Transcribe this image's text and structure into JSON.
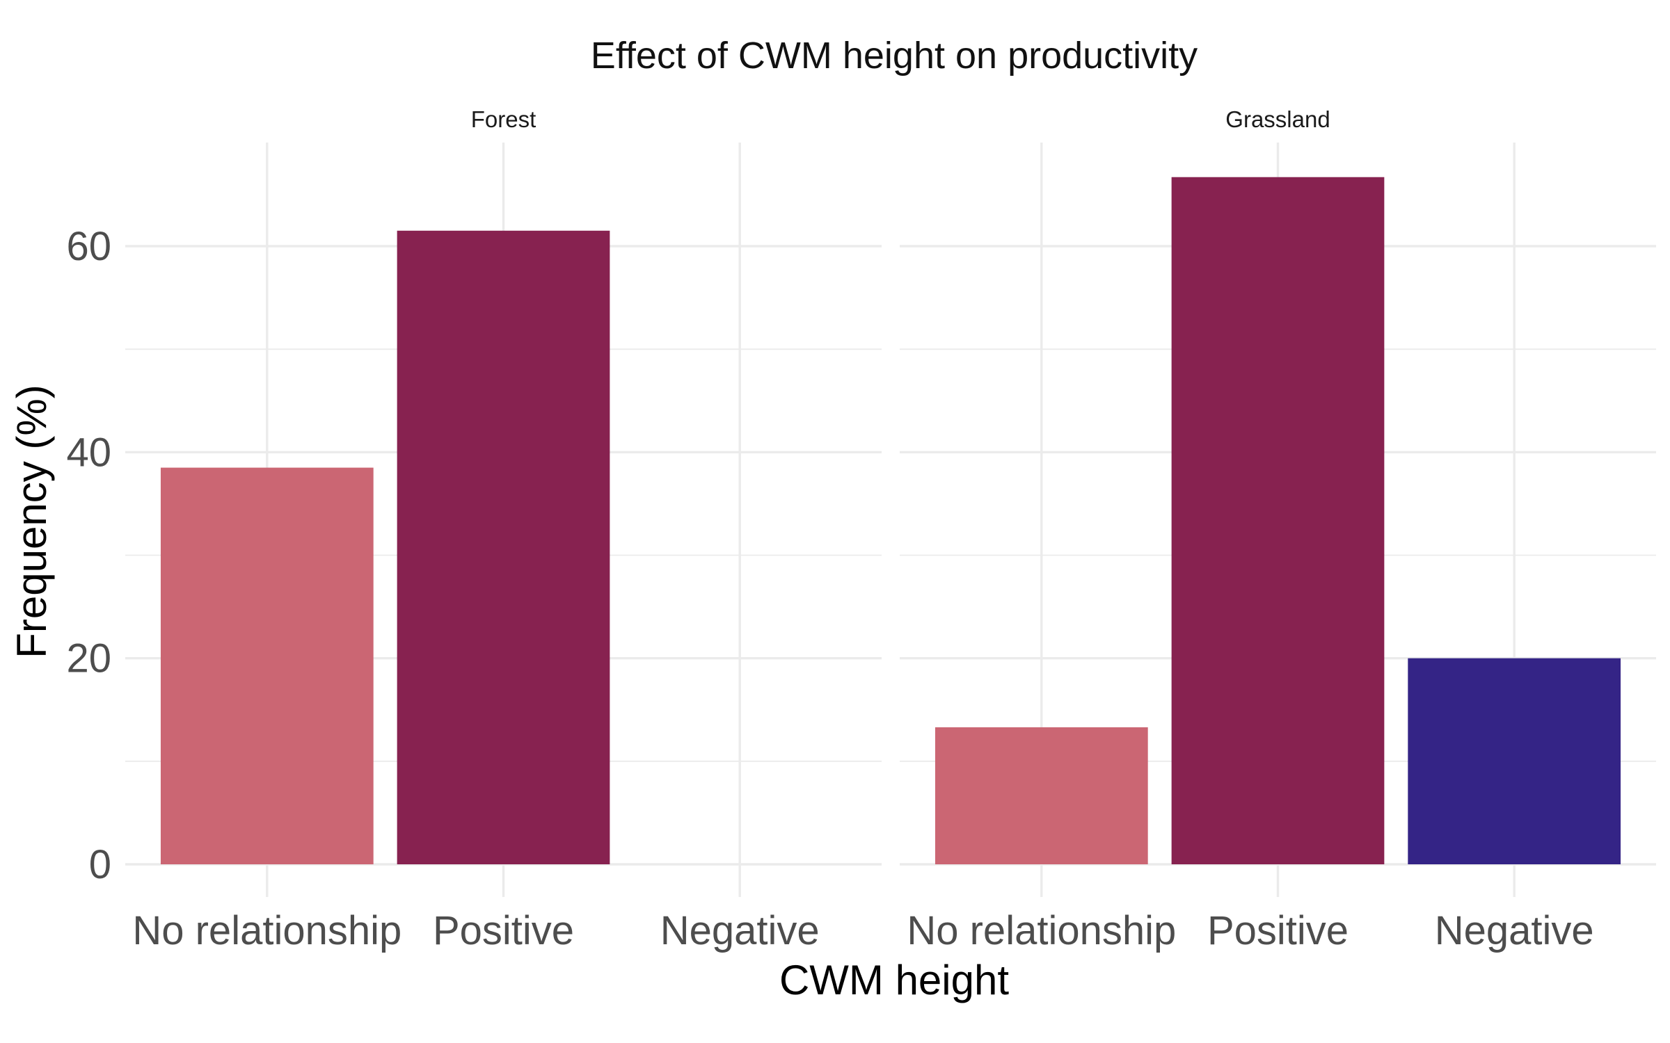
{
  "chart_data": {
    "type": "bar",
    "title": "Effect of CWM height on productivity",
    "xlabel": "CWM height",
    "ylabel": "Frequency (%)",
    "ylim": [
      0,
      70
    ],
    "y_ticks": [
      "0",
      "20",
      "40",
      "60"
    ],
    "y_tick_values": [
      0,
      20,
      40,
      60
    ],
    "y_minor_tick_values": [
      10,
      30,
      50
    ],
    "grid": true,
    "legend": "none",
    "categories": [
      "No relationship",
      "Positive",
      "Negative"
    ],
    "category_colors": [
      "#cb6673",
      "#872250",
      "#342486"
    ],
    "panels": [
      {
        "name": "Forest",
        "values": [
          38.5,
          61.5,
          0
        ]
      },
      {
        "name": "Grassland",
        "values": [
          13.3,
          66.7,
          20
        ]
      }
    ]
  }
}
